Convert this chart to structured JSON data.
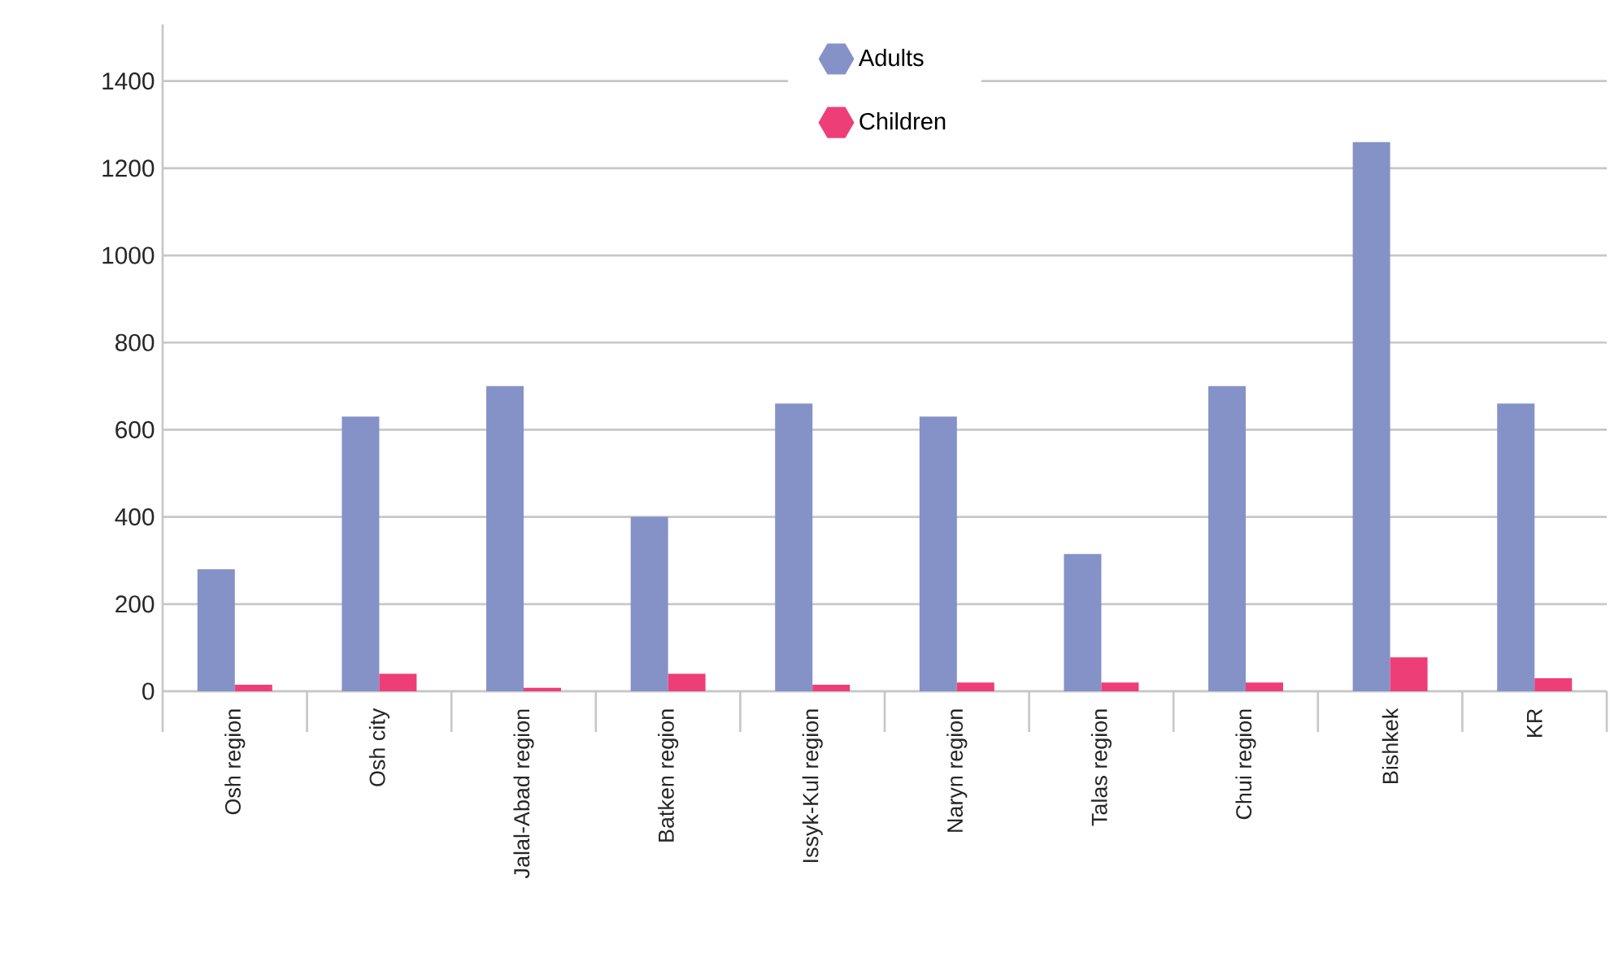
{
  "chart_data": {
    "type": "bar",
    "categories": [
      "Osh region",
      "Osh city",
      "Jalal-Abad region",
      "Batken region",
      "Issyk-Kul region",
      "Naryn region",
      "Talas region",
      "Chui region",
      "Bishkek",
      "KR"
    ],
    "series": [
      {
        "name": "Adults",
        "color": "#8592c8",
        "values": [
          280,
          630,
          700,
          400,
          660,
          630,
          315,
          700,
          1260,
          660
        ]
      },
      {
        "name": "Children",
        "color": "#ee3e78",
        "values": [
          15,
          40,
          8,
          40,
          15,
          20,
          20,
          20,
          78,
          30
        ]
      }
    ],
    "ylim": [
      0,
      1530
    ],
    "yticks": [
      0,
      200,
      400,
      600,
      800,
      1000,
      1200,
      1400
    ],
    "grid": "y",
    "legend": "top"
  }
}
